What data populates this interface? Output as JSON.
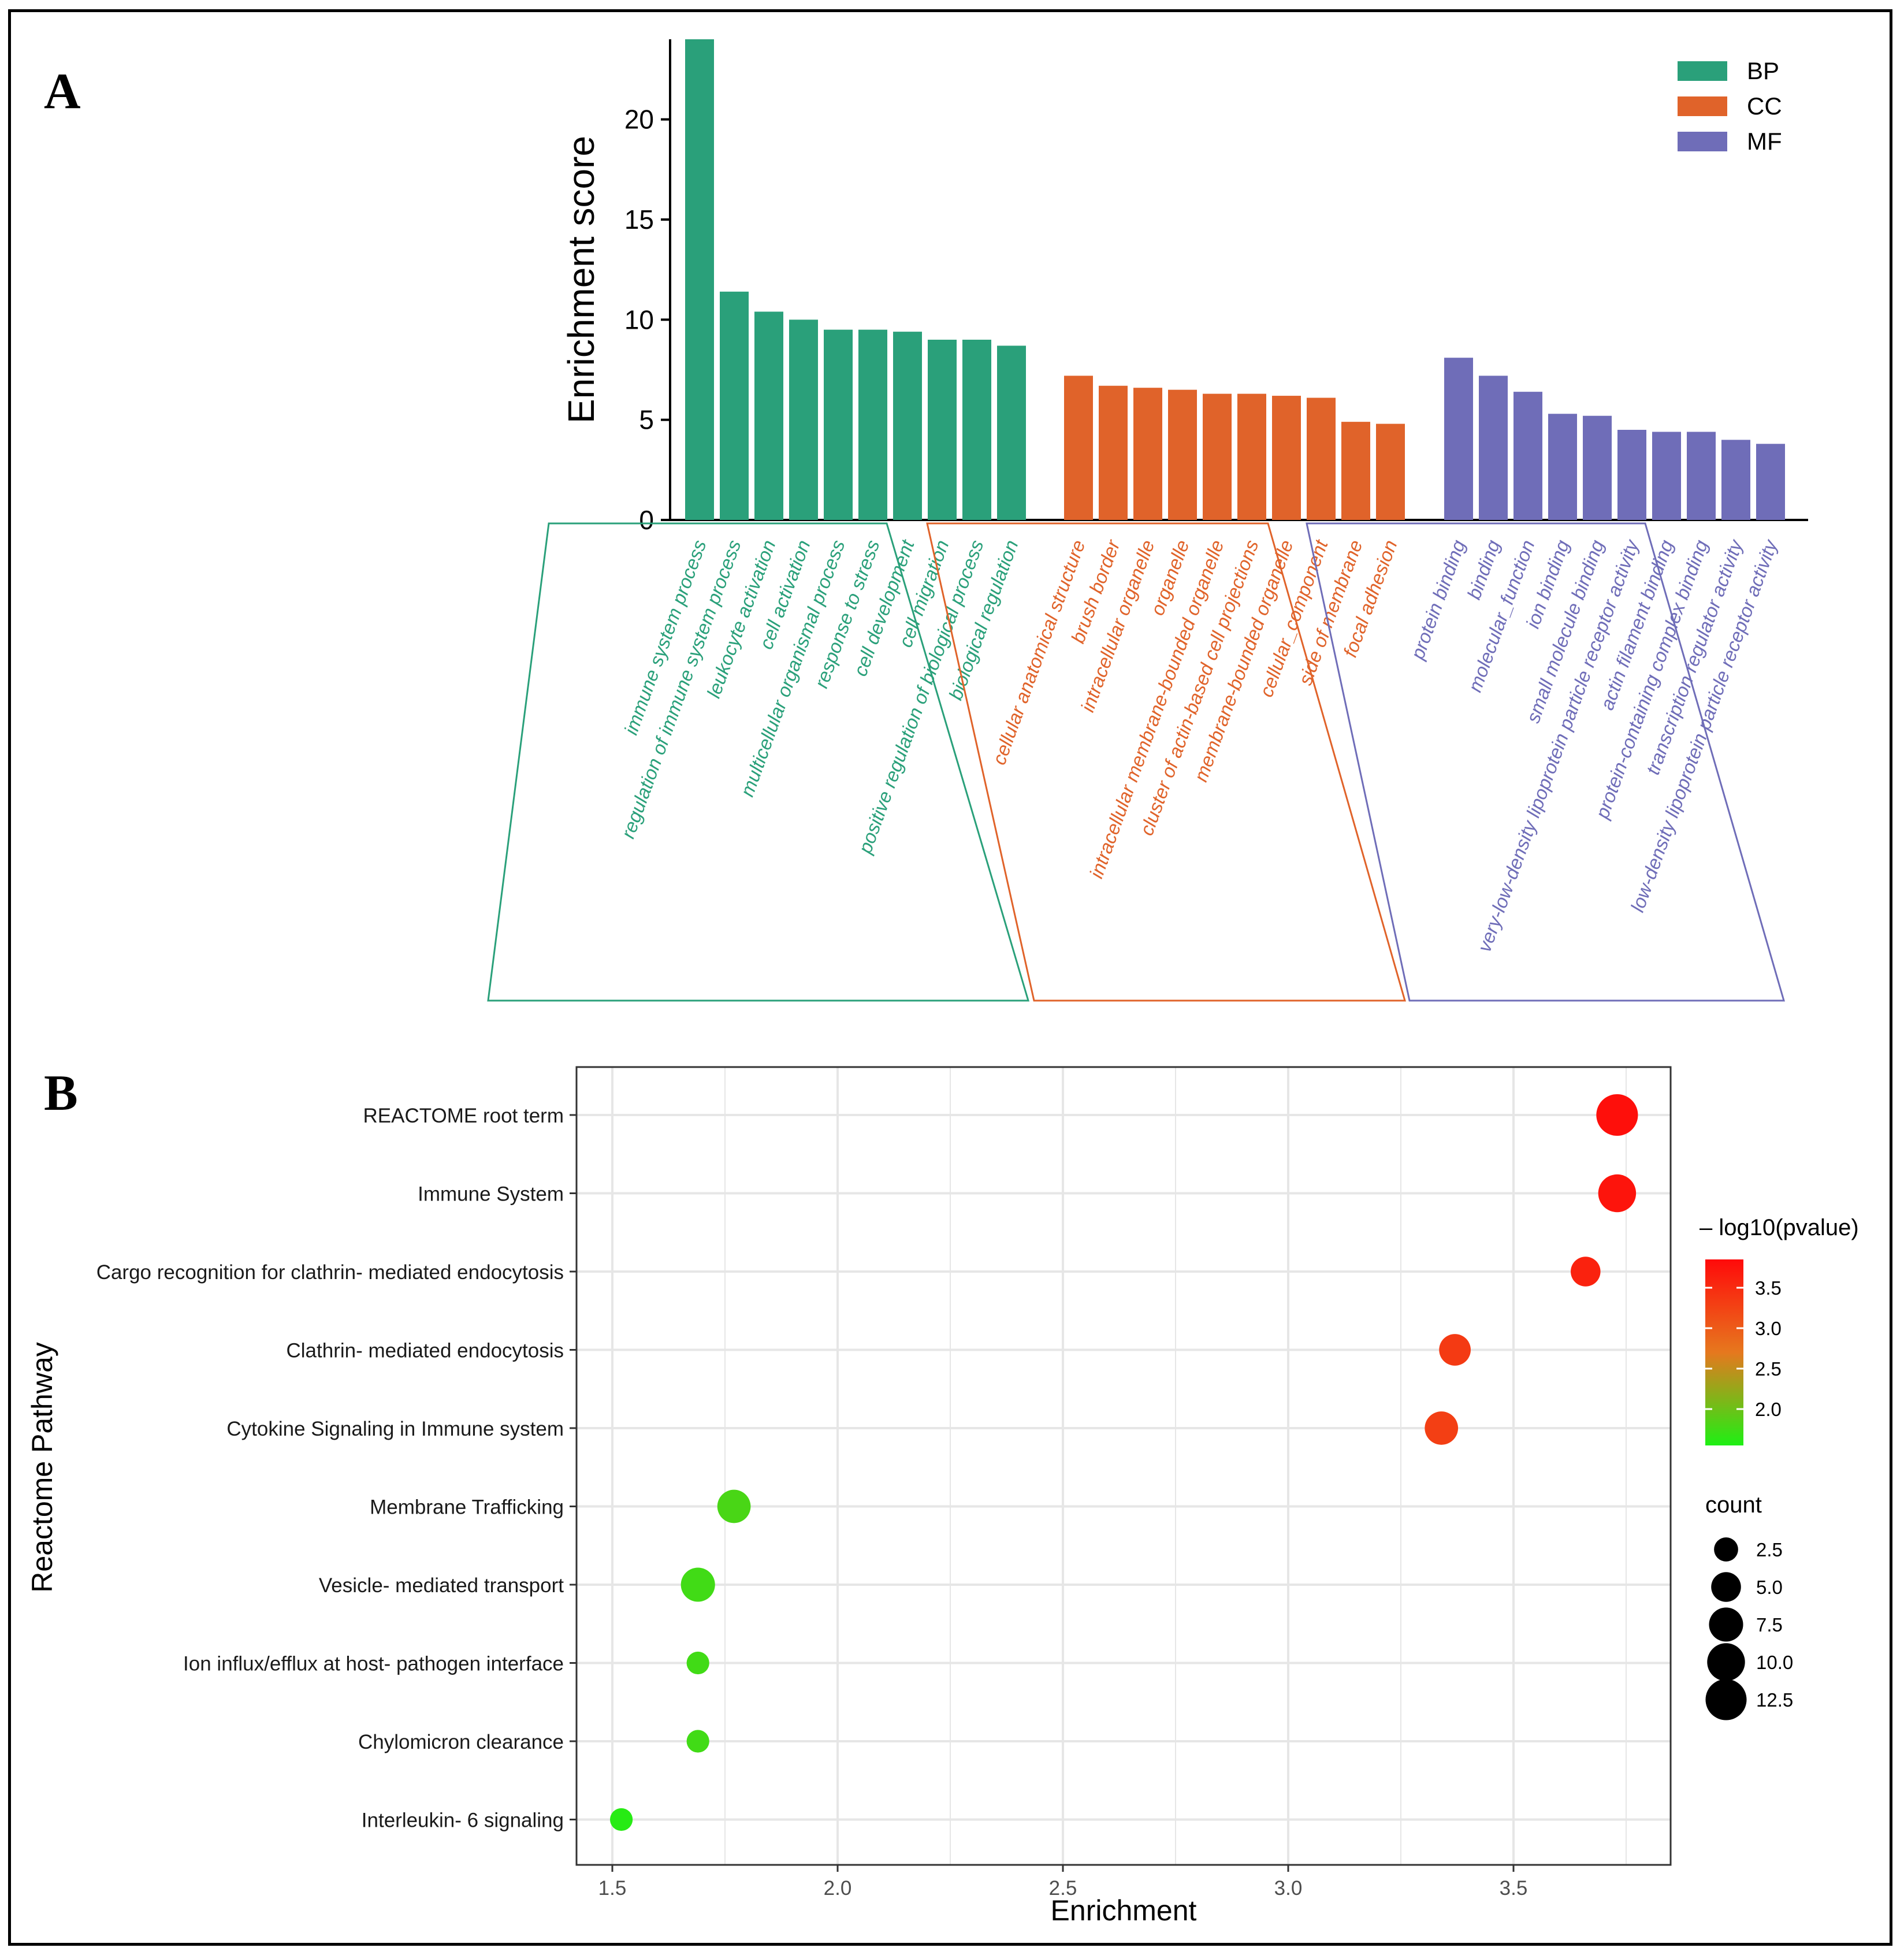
{
  "panels": {
    "a_label": "A",
    "b_label": "B"
  },
  "colors": {
    "BP": "#2aa07a",
    "CC": "#e0632a",
    "MF": "#6f6db8"
  },
  "chart_data": [
    {
      "type": "bar",
      "panel": "A",
      "ylabel": "Enrichment score",
      "ylim": [
        0,
        24
      ],
      "yticks": [
        0,
        5,
        10,
        15,
        20
      ],
      "legend": {
        "placement": "top-right",
        "entries": [
          "BP",
          "CC",
          "MF"
        ]
      },
      "groups": [
        {
          "name": "BP",
          "categories": [
            "immune system process",
            "regulation of immune system process",
            "leukocyte activation",
            "cell activation",
            "multicellular organismal process",
            "response to stress",
            "cell development",
            "cell migration",
            "positive regulation of biological process",
            "biological regulation"
          ],
          "values": [
            24.0,
            11.4,
            10.4,
            10.0,
            9.5,
            9.5,
            9.4,
            9.0,
            9.0,
            8.7
          ]
        },
        {
          "name": "CC",
          "categories": [
            "cellular anatomical structure",
            "brush border",
            "intracellular organelle",
            "organelle",
            "intracellular membrane-bounded organelle",
            "cluster of actin-based cell projections",
            "membrane-bounded organelle",
            "cellular_component",
            "side of membrane",
            "focal adhesion"
          ],
          "values": [
            7.2,
            6.7,
            6.6,
            6.5,
            6.3,
            6.3,
            6.2,
            6.1,
            4.9,
            4.8
          ]
        },
        {
          "name": "MF",
          "categories": [
            "protein binding",
            "binding",
            "molecular_function",
            "ion binding",
            "small molecule binding",
            "very-low-density lipoprotein particle receptor activity",
            "actin filament binding",
            "protein-containing complex binding",
            "transcription regulator activity",
            "low-density lipoprotein particle receptor activity"
          ],
          "values": [
            8.1,
            7.2,
            6.4,
            5.3,
            5.2,
            4.5,
            4.4,
            4.4,
            4.0,
            3.8
          ]
        }
      ]
    },
    {
      "type": "scatter",
      "panel": "B",
      "xlabel": "Enrichment",
      "ylabel": "Reactome Pathway",
      "xlim": [
        1.4,
        3.75
      ],
      "xticks": [
        1.5,
        2.0,
        2.5,
        3.0,
        3.5
      ],
      "xtick_labels": [
        "1.5",
        "2.0",
        "2.5",
        "3.0",
        "3.5"
      ],
      "categories": [
        "REACTOME root term",
        "Immune System",
        "Cargo recognition for clathrin- mediated endocytosis",
        "Clathrin- mediated endocytosis",
        "Cytokine Signaling in Immune system",
        "Membrane Trafficking",
        "Vesicle- mediated transport",
        "Ion influx/efflux at host- pathogen interface",
        "Chylomicron clearance",
        "Interleukin- 6 signaling"
      ],
      "points": [
        {
          "pathway": "REACTOME root term",
          "enrichment": 3.73,
          "log10p": 3.8,
          "count": 13
        },
        {
          "pathway": "Immune System",
          "enrichment": 3.73,
          "log10p": 3.75,
          "count": 10
        },
        {
          "pathway": "Cargo recognition for clathrin- mediated endocytosis",
          "enrichment": 3.66,
          "log10p": 3.6,
          "count": 5
        },
        {
          "pathway": "Clathrin- mediated endocytosis",
          "enrichment": 3.37,
          "log10p": 3.35,
          "count": 6
        },
        {
          "pathway": "Cytokine Signaling in Immune system",
          "enrichment": 3.34,
          "log10p": 3.3,
          "count": 7
        },
        {
          "pathway": "Membrane Trafficking",
          "enrichment": 1.77,
          "log10p": 1.8,
          "count": 7
        },
        {
          "pathway": "Vesicle- mediated transport",
          "enrichment": 1.69,
          "log10p": 1.75,
          "count": 7.5
        },
        {
          "pathway": "Ion influx/efflux at host- pathogen interface",
          "enrichment": 1.69,
          "log10p": 1.75,
          "count": 2
        },
        {
          "pathway": "Chylomicron clearance",
          "enrichment": 1.69,
          "log10p": 1.75,
          "count": 2
        },
        {
          "pathway": "Interleukin- 6 signaling",
          "enrichment": 1.52,
          "log10p": 1.6,
          "count": 2
        }
      ],
      "color_legend": {
        "title": "– log10(pvalue)",
        "range": [
          1.55,
          3.85
        ],
        "ticks": [
          3.5,
          3.0,
          2.5,
          2.0
        ],
        "tick_labels": [
          "3.5",
          "3.0",
          "2.5",
          "2.0"
        ]
      },
      "size_legend": {
        "title": "count",
        "values": [
          2.5,
          5.0,
          7.5,
          10.0,
          12.5
        ],
        "labels": [
          "2.5",
          "5.0",
          "7.5",
          "10.0",
          "12.5"
        ]
      }
    }
  ]
}
